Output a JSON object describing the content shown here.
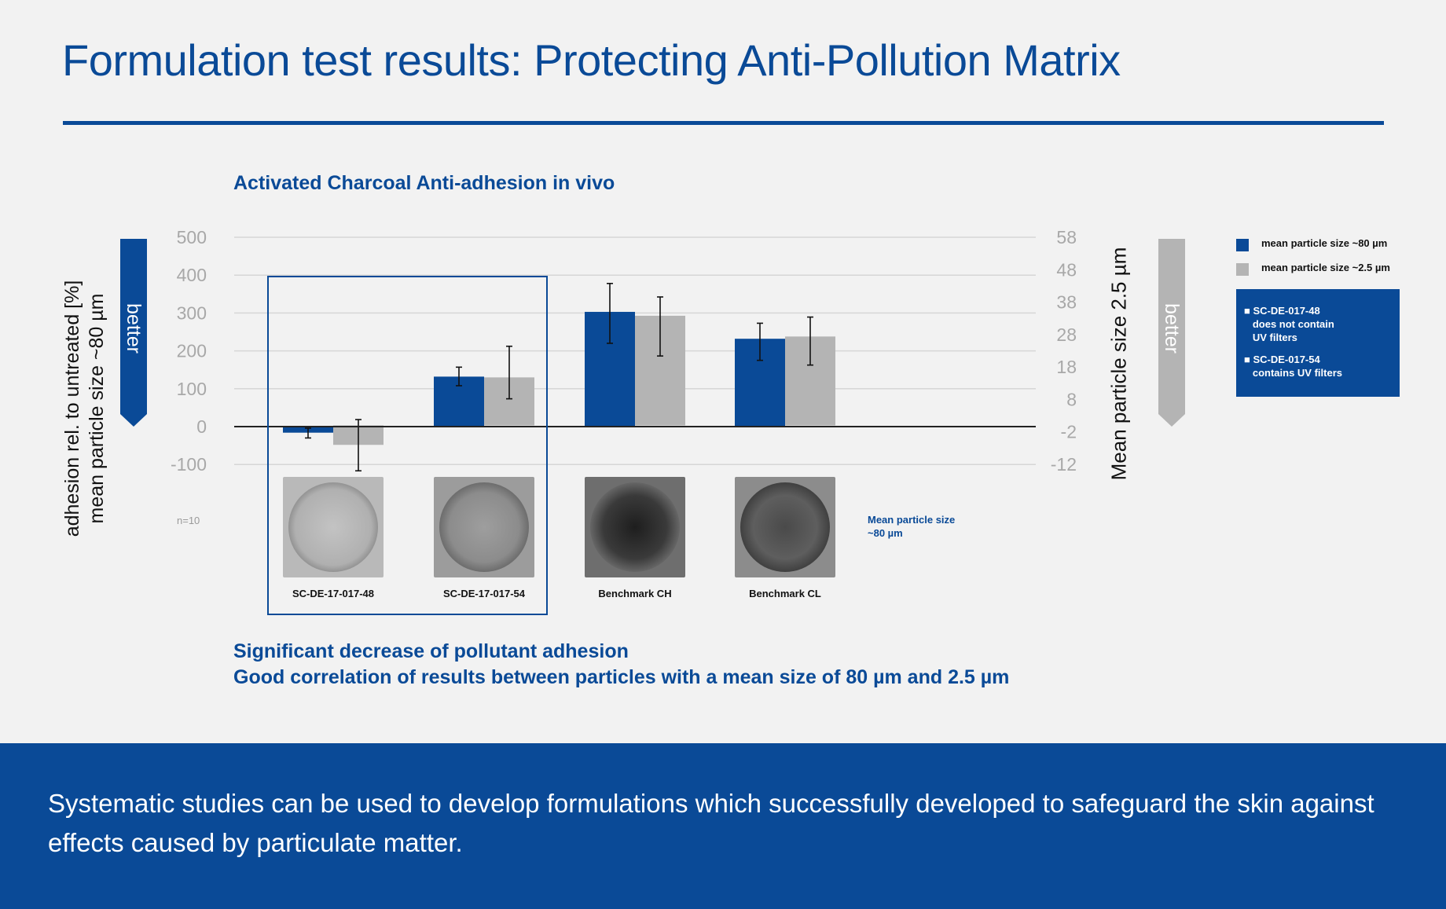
{
  "page": {
    "title": "Formulation test results: Protecting Anti-Pollution Matrix",
    "footer_text": "Systematic studies can be used to develop formulations which successfully developed to safeguard the skin against effects caused by particulate matter."
  },
  "chart_data": {
    "type": "bar",
    "title": "Activated Charcoal Anti-adhesion in vivo",
    "ylabel_left_line1": "adhesion rel. to untreated [%]",
    "ylabel_left_line2": "mean particle size ~80 µm",
    "ylabel_right": "Mean particle size 2.5  µm",
    "ylim_left": [
      -100,
      500
    ],
    "yticks_left": [
      500,
      400,
      300,
      200,
      100,
      0,
      -100
    ],
    "ylim_right": [
      -12,
      58
    ],
    "yticks_right": [
      58,
      48,
      38,
      28,
      18,
      8,
      -2,
      -12
    ],
    "categories": [
      "SC-DE-17-017-48",
      "SC-DE-17-017-54",
      "Benchmark CH",
      "Benchmark CL"
    ],
    "series": [
      {
        "name": "mean particle size ~80 µm",
        "color": "#0a4a97",
        "axis": "left",
        "values": [
          -16,
          132,
          303,
          232
        ],
        "err_low": [
          -30,
          108,
          220,
          175
        ],
        "err_high": [
          -4,
          157,
          378,
          273
        ]
      },
      {
        "name": "mean particle size ~2.5 µm",
        "color": "#b4b4b4",
        "axis": "right",
        "values": [
          -6,
          14.8,
          33.8,
          27.4
        ],
        "err_low": [
          -14,
          8.2,
          21.4,
          18.6
        ],
        "err_high": [
          1.8,
          24.4,
          39.6,
          33.4
        ]
      }
    ],
    "grid": true,
    "arrow_left_label": "better",
    "arrow_right_label": "better",
    "n_label": "n=10",
    "note": [
      "Mean particle size",
      "~80 µm"
    ]
  },
  "legend": {
    "item1": "mean particle size ~80 µm",
    "item2": "mean particle size ~2.5 µm",
    "box": [
      {
        "line1": "SC-DE-017-48",
        "line2": "does not contain",
        "line3": "UV filters"
      },
      {
        "line1": "SC-DE-017-54",
        "line2": "contains UV filters"
      }
    ]
  },
  "findings": {
    "line1": "Significant decrease of pollutant adhesion",
    "line2": "Good correlation of results between particles with a mean size of 80 µm and 2.5 µm"
  }
}
